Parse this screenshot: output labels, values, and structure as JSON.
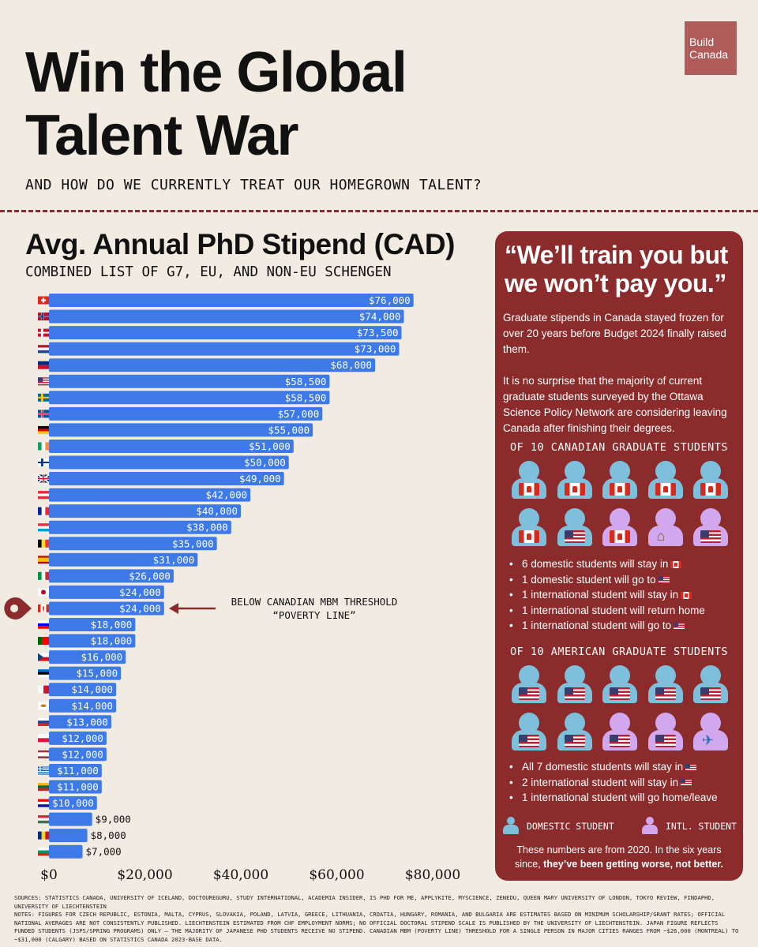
{
  "header": {
    "logo_line1": "Build",
    "logo_line2": "Canada",
    "title_line1": "Win the Global",
    "title_line2": "Talent War",
    "subtitle": "AND HOW DO WE CURRENTLY TREAT OUR HOMEGROWN TALENT?"
  },
  "chart_data": {
    "type": "bar",
    "orientation": "horizontal",
    "title": "Avg. Annual PhD Stipend (CAD)",
    "subtitle": "COMBINED LIST OF G7, EU, AND NON-EU SCHENGEN",
    "categories": [
      "Switzerland",
      "Norway",
      "Denmark",
      "Netherlands",
      "Liechtenstein",
      "United States",
      "Sweden",
      "Iceland",
      "Germany",
      "Ireland",
      "Finland",
      "United Kingdom",
      "Austria",
      "France",
      "Luxembourg",
      "Belgium",
      "Spain",
      "Italy",
      "Japan",
      "Canada",
      "Slovenia",
      "Portugal",
      "Czech Republic",
      "Estonia",
      "Malta",
      "Cyprus",
      "Slovakia",
      "Poland",
      "Latvia",
      "Greece",
      "Lithuania",
      "Croatia",
      "Hungary",
      "Romania",
      "Bulgaria"
    ],
    "values": [
      76000,
      74000,
      73500,
      73000,
      68000,
      58500,
      58500,
      57000,
      55000,
      51000,
      50000,
      49000,
      42000,
      40000,
      38000,
      35000,
      31000,
      26000,
      24000,
      24000,
      18000,
      18000,
      16000,
      15000,
      14000,
      14000,
      13000,
      12000,
      12000,
      11000,
      11000,
      10000,
      9000,
      8000,
      7000
    ],
    "value_labels": [
      "$76,000",
      "$74,000",
      "$73,500",
      "$73,000",
      "$68,000",
      "$58,500",
      "$58,500",
      "$57,000",
      "$55,000",
      "$51,000",
      "$50,000",
      "$49,000",
      "$42,000",
      "$40,000",
      "$38,000",
      "$35,000",
      "$31,000",
      "$26,000",
      "$24,000",
      "$24,000",
      "$18,000",
      "$18,000",
      "$16,000",
      "$15,000",
      "$14,000",
      "$14,000",
      "$13,000",
      "$12,000",
      "$12,000",
      "$11,000",
      "$11,000",
      "$10,000",
      "$9,000",
      "$8,000",
      "$7,000"
    ],
    "flags": [
      {
        "t": "swiss"
      },
      {
        "t": "nordic",
        "b": "#ba0c2f",
        "c": "#ffffff",
        "i": "#00205b"
      },
      {
        "t": "nordic",
        "b": "#c8102e",
        "c": "#ffffff"
      },
      {
        "t": "h3",
        "c": [
          "#ae1c28",
          "#ffffff",
          "#21468b"
        ]
      },
      {
        "t": "h2",
        "c": [
          "#002b7f",
          "#ce1126"
        ]
      },
      {
        "t": "us"
      },
      {
        "t": "nordic",
        "b": "#006aa7",
        "c": "#fecc00"
      },
      {
        "t": "nordic",
        "b": "#02529c",
        "c": "#ffffff",
        "i": "#dc1e35"
      },
      {
        "t": "h3",
        "c": [
          "#000000",
          "#dd0000",
          "#ffce00"
        ]
      },
      {
        "t": "v3",
        "c": [
          "#169b62",
          "#ffffff",
          "#ff883e"
        ]
      },
      {
        "t": "nordic",
        "b": "#ffffff",
        "c": "#003580"
      },
      {
        "t": "uk"
      },
      {
        "t": "h3",
        "c": [
          "#ed2939",
          "#ffffff",
          "#ed2939"
        ]
      },
      {
        "t": "v3",
        "c": [
          "#002395",
          "#ffffff",
          "#ed2939"
        ]
      },
      {
        "t": "h3",
        "c": [
          "#ed2939",
          "#ffffff",
          "#00a1de"
        ]
      },
      {
        "t": "v3",
        "c": [
          "#000000",
          "#fdda24",
          "#ef3340"
        ]
      },
      {
        "t": "h3w",
        "c": [
          "#aa151b",
          "#f1bf00",
          "#aa151b"
        ]
      },
      {
        "t": "v3",
        "c": [
          "#009246",
          "#ffffff",
          "#ce2b37"
        ]
      },
      {
        "t": "japan"
      },
      {
        "t": "canada"
      },
      {
        "t": "h3",
        "c": [
          "#ffffff",
          "#0000ff",
          "#ff0000"
        ]
      },
      {
        "t": "v2w",
        "c": [
          "#006600",
          "#ff0000"
        ]
      },
      {
        "t": "czech"
      },
      {
        "t": "h3",
        "c": [
          "#0072ce",
          "#000000",
          "#ffffff"
        ]
      },
      {
        "t": "v2",
        "c": [
          "#ffffff",
          "#cf142b"
        ]
      },
      {
        "t": "plain",
        "c": "#ffffff",
        "m": "#d57800"
      },
      {
        "t": "h3",
        "c": [
          "#ffffff",
          "#0b4ea2",
          "#ee1c25"
        ]
      },
      {
        "t": "h2",
        "c": [
          "#ffffff",
          "#dc143c"
        ]
      },
      {
        "t": "h3w",
        "c": [
          "#9e3039",
          "#ffffff",
          "#9e3039"
        ]
      },
      {
        "t": "stripes",
        "c": [
          "#0d5eaf",
          "#ffffff"
        ]
      },
      {
        "t": "h3",
        "c": [
          "#fdb913",
          "#006a44",
          "#c1272d"
        ]
      },
      {
        "t": "h3",
        "c": [
          "#ff0000",
          "#ffffff",
          "#171796"
        ]
      },
      {
        "t": "h3",
        "c": [
          "#ce2939",
          "#ffffff",
          "#477050"
        ]
      },
      {
        "t": "v3",
        "c": [
          "#002b7f",
          "#fcd116",
          "#ce1126"
        ]
      },
      {
        "t": "h3",
        "c": [
          "#ffffff",
          "#00966e",
          "#d62612"
        ]
      }
    ],
    "x_ticks": [
      "$0",
      "$20,000",
      "$40,000",
      "$60,000",
      "$80,000"
    ],
    "x_tick_values": [
      0,
      20000,
      40000,
      60000,
      80000
    ],
    "xlim": [
      0,
      80000
    ],
    "highlight_index": 19,
    "grid": false,
    "bar_color": "#3d7ae8",
    "annotation_line1": "BELOW CANADIAN MBM THRESHOLD",
    "annotation_line2": "“POVERTY LINE”",
    "annotation_color": "#8b2b2b"
  },
  "footer": {
    "sources": "SOURCES: STATISTICS CANADA, UNIVERSITY OF ICELAND, DOCTOUREGURU, STUDY INTERNATIONAL, ACADEMIA INSIDER, IS PHD FOR ME, APPLYKITE, MYSCIENCE, ZENEDU, QUEEN MARY UNIVERSITY OF LONDON, TOKYO REVIEW, FINDAPHD, UNIVERSITY OF LIECHTENSTEIN",
    "notes": "NOTES: FIGURES FOR CZECH REPUBLIC, ESTONIA, MALTA, CYPRUS, SLOVAKIA, POLAND, LATVIA, GREECE, LITHUANIA, CROATIA, HUNGARY, ROMANIA, AND BULGARIA ARE ESTIMATES BASED ON MINIMUM SCHOLARSHIP/GRANT RATES; OFFICIAL NATIONAL AVERAGES ARE NOT CONSISTENTLY PUBLISHED. LIECHTENSTEIN ESTIMATED FROM CHF EMPLOYMENT NORMS; NO OFFICIAL DOCTORAL STIPEND SCALE IS PUBLISHED BY THE UNIVERSITY OF LIECHTENSTEIN. JAPAN FIGURE REFLECTS FUNDED STUDENTS (JSPS/SPRING PROGRAMS) ONLY — THE MAJORITY OF JAPANESE PHD STUDENTS RECEIVE NO STIPEND. CANADIAN MBM (POVERTY LINE) THRESHOLD FOR A SINGLE PERSON IN MAJOR CITIES RANGES FROM ~$26,000 (MONTREAL) TO ~$31,000 (CALGARY) BASED ON STATISTICS CANADA 2023-BASE DATA."
  },
  "panel": {
    "quote": "“We’ll train you but we won’t pay you.”",
    "para1": "Graduate stipends in Canada stayed frozen for over 20 years before Budget 2024 finally raised them.",
    "para2": "It is no surprise that the majority of current graduate students surveyed by the Ottawa Science Policy Network are considering leaving Canada after finishing their degrees.",
    "canada_heading": "OF 10 CANADIAN GRADUATE STUDENTS",
    "canada_figures": [
      {
        "type": "domestic",
        "mark": "canada"
      },
      {
        "type": "domestic",
        "mark": "canada"
      },
      {
        "type": "domestic",
        "mark": "canada"
      },
      {
        "type": "domestic",
        "mark": "canada"
      },
      {
        "type": "domestic",
        "mark": "canada"
      },
      {
        "type": "domestic",
        "mark": "canada"
      },
      {
        "type": "domestic",
        "mark": "us"
      },
      {
        "type": "international",
        "mark": "canada"
      },
      {
        "type": "international",
        "mark": "house"
      },
      {
        "type": "international",
        "mark": "us"
      }
    ],
    "canada_bullets": [
      {
        "text": "6 domestic students will stay in",
        "flag": "canada"
      },
      {
        "text": "1 domestic student will go to",
        "flag": "us"
      },
      {
        "text": "1 international student will stay in",
        "flag": "canada"
      },
      {
        "text": "1 international student will return home",
        "flag": ""
      },
      {
        "text": "1 international student will go to",
        "flag": "us"
      }
    ],
    "us_heading": "OF 10 AMERICAN GRADUATE STUDENTS",
    "us_figures": [
      {
        "type": "domestic",
        "mark": "us"
      },
      {
        "type": "domestic",
        "mark": "us"
      },
      {
        "type": "domestic",
        "mark": "us"
      },
      {
        "type": "domestic",
        "mark": "us"
      },
      {
        "type": "domestic",
        "mark": "us"
      },
      {
        "type": "domestic",
        "mark": "us"
      },
      {
        "type": "domestic",
        "mark": "us"
      },
      {
        "type": "international",
        "mark": "us"
      },
      {
        "type": "international",
        "mark": "us"
      },
      {
        "type": "international",
        "mark": "plane"
      }
    ],
    "us_bullets": [
      {
        "text": "All 7 domestic students will stay in",
        "flag": "us"
      },
      {
        "text": "2 international student will stay in",
        "flag": "us"
      },
      {
        "text": "1 international student will go home/leave",
        "flag": ""
      }
    ],
    "legend_domestic": "DOMESTIC STUDENT",
    "legend_international": "INTL. STUDENT",
    "closing_normal": "These numbers are from 2020. In the six years since, ",
    "closing_bold": "they’ve been getting worse, not better.",
    "colors": {
      "panel_bg": "#8b2b2b",
      "domestic": "#7ec0dc",
      "international": "#d1a8ee"
    },
    "icons": {
      "house": "house-icon",
      "plane": "airplane-icon"
    }
  }
}
